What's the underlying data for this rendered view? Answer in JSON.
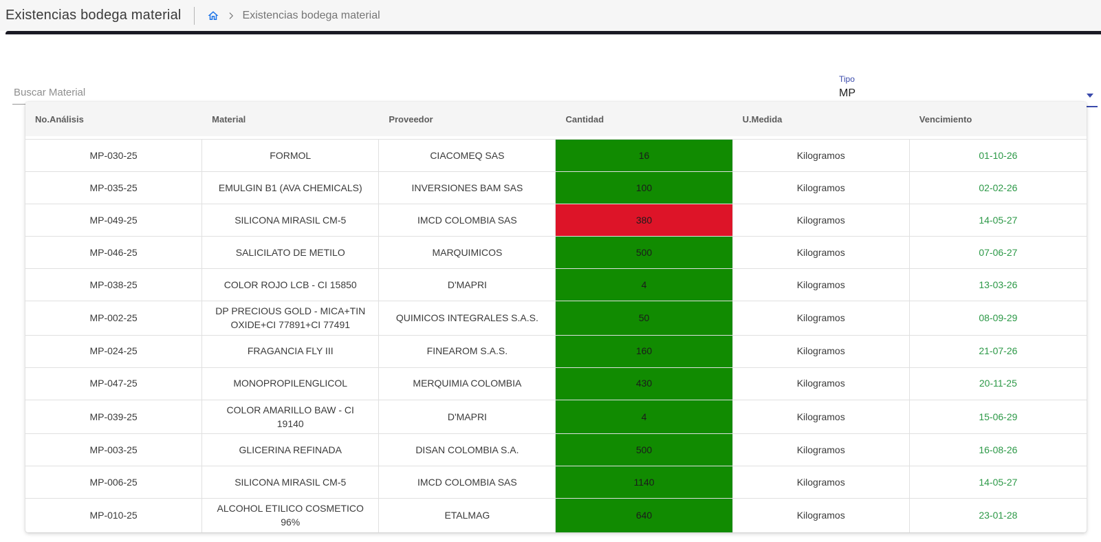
{
  "page": {
    "title": "Existencias bodega material",
    "breadcrumb": {
      "current": "Existencias bodega material"
    }
  },
  "filters": {
    "search": {
      "placeholder": "Buscar Material",
      "value": ""
    },
    "tipo": {
      "label": "Tipo",
      "selected": "MP"
    }
  },
  "table": {
    "columns": [
      "No.Análisis",
      "Material",
      "Proveedor",
      "Cantidad",
      "U.Medida",
      "Vencimiento"
    ],
    "rows": [
      {
        "analisis": "MP-030-25",
        "material": "FORMOL",
        "proveedor": "CIACOMEQ SAS",
        "cantidad": "16",
        "cantidad_estado": "ok",
        "unidad": "Kilogramos",
        "vencimiento": "01-10-26"
      },
      {
        "analisis": "MP-035-25",
        "material": "EMULGIN B1 (AVA CHEMICALS)",
        "proveedor": "INVERSIONES BAM SAS",
        "cantidad": "100",
        "cantidad_estado": "ok",
        "unidad": "Kilogramos",
        "vencimiento": "02-02-26"
      },
      {
        "analisis": "MP-049-25",
        "material": "SILICONA MIRASIL CM-5",
        "proveedor": "IMCD COLOMBIA SAS",
        "cantidad": "380",
        "cantidad_estado": "alert",
        "unidad": "Kilogramos",
        "vencimiento": "14-05-27"
      },
      {
        "analisis": "MP-046-25",
        "material": "SALICILATO DE METILO",
        "proveedor": "MARQUIMICOS",
        "cantidad": "500",
        "cantidad_estado": "ok",
        "unidad": "Kilogramos",
        "vencimiento": "07-06-27"
      },
      {
        "analisis": "MP-038-25",
        "material": "COLOR ROJO LCB - CI 15850",
        "proveedor": "D'MAPRI",
        "cantidad": "4",
        "cantidad_estado": "ok",
        "unidad": "Kilogramos",
        "vencimiento": "13-03-26"
      },
      {
        "analisis": "MP-002-25",
        "material": "DP PRECIOUS GOLD - MICA+TIN OXIDE+CI 77891+CI 77491",
        "proveedor": "QUIMICOS INTEGRALES S.A.S.",
        "cantidad": "50",
        "cantidad_estado": "ok",
        "unidad": "Kilogramos",
        "vencimiento": "08-09-29"
      },
      {
        "analisis": "MP-024-25",
        "material": "FRAGANCIA FLY III",
        "proveedor": "FINEAROM S.A.S.",
        "cantidad": "160",
        "cantidad_estado": "ok",
        "unidad": "Kilogramos",
        "vencimiento": "21-07-26"
      },
      {
        "analisis": "MP-047-25",
        "material": "MONOPROPILENGLICOL",
        "proveedor": "MERQUIMIA COLOMBIA",
        "cantidad": "430",
        "cantidad_estado": "ok",
        "unidad": "Kilogramos",
        "vencimiento": "20-11-25"
      },
      {
        "analisis": "MP-039-25",
        "material": "COLOR AMARILLO BAW - CI 19140",
        "proveedor": "D'MAPRI",
        "cantidad": "4",
        "cantidad_estado": "ok",
        "unidad": "Kilogramos",
        "vencimiento": "15-06-29"
      },
      {
        "analisis": "MP-003-25",
        "material": "GLICERINA REFINADA",
        "proveedor": "DISAN COLOMBIA S.A.",
        "cantidad": "500",
        "cantidad_estado": "ok",
        "unidad": "Kilogramos",
        "vencimiento": "16-08-26"
      },
      {
        "analisis": "MP-006-25",
        "material": "SILICONA MIRASIL CM-5",
        "proveedor": "IMCD COLOMBIA SAS",
        "cantidad": "1140",
        "cantidad_estado": "ok",
        "unidad": "Kilogramos",
        "vencimiento": "14-05-27"
      },
      {
        "analisis": "MP-010-25",
        "material": "ALCOHOL ETILICO COSMETICO 96%",
        "proveedor": "ETALMAG",
        "cantidad": "640",
        "cantidad_estado": "ok",
        "unidad": "Kilogramos",
        "vencimiento": "23-01-28"
      }
    ]
  },
  "colors": {
    "qty_ok_bg": "#118b01",
    "qty_alert_bg": "#dd1428",
    "date_text": "#2b9846",
    "accent_indigo": "#3949ab",
    "home_icon_blue": "#1a73e8"
  }
}
